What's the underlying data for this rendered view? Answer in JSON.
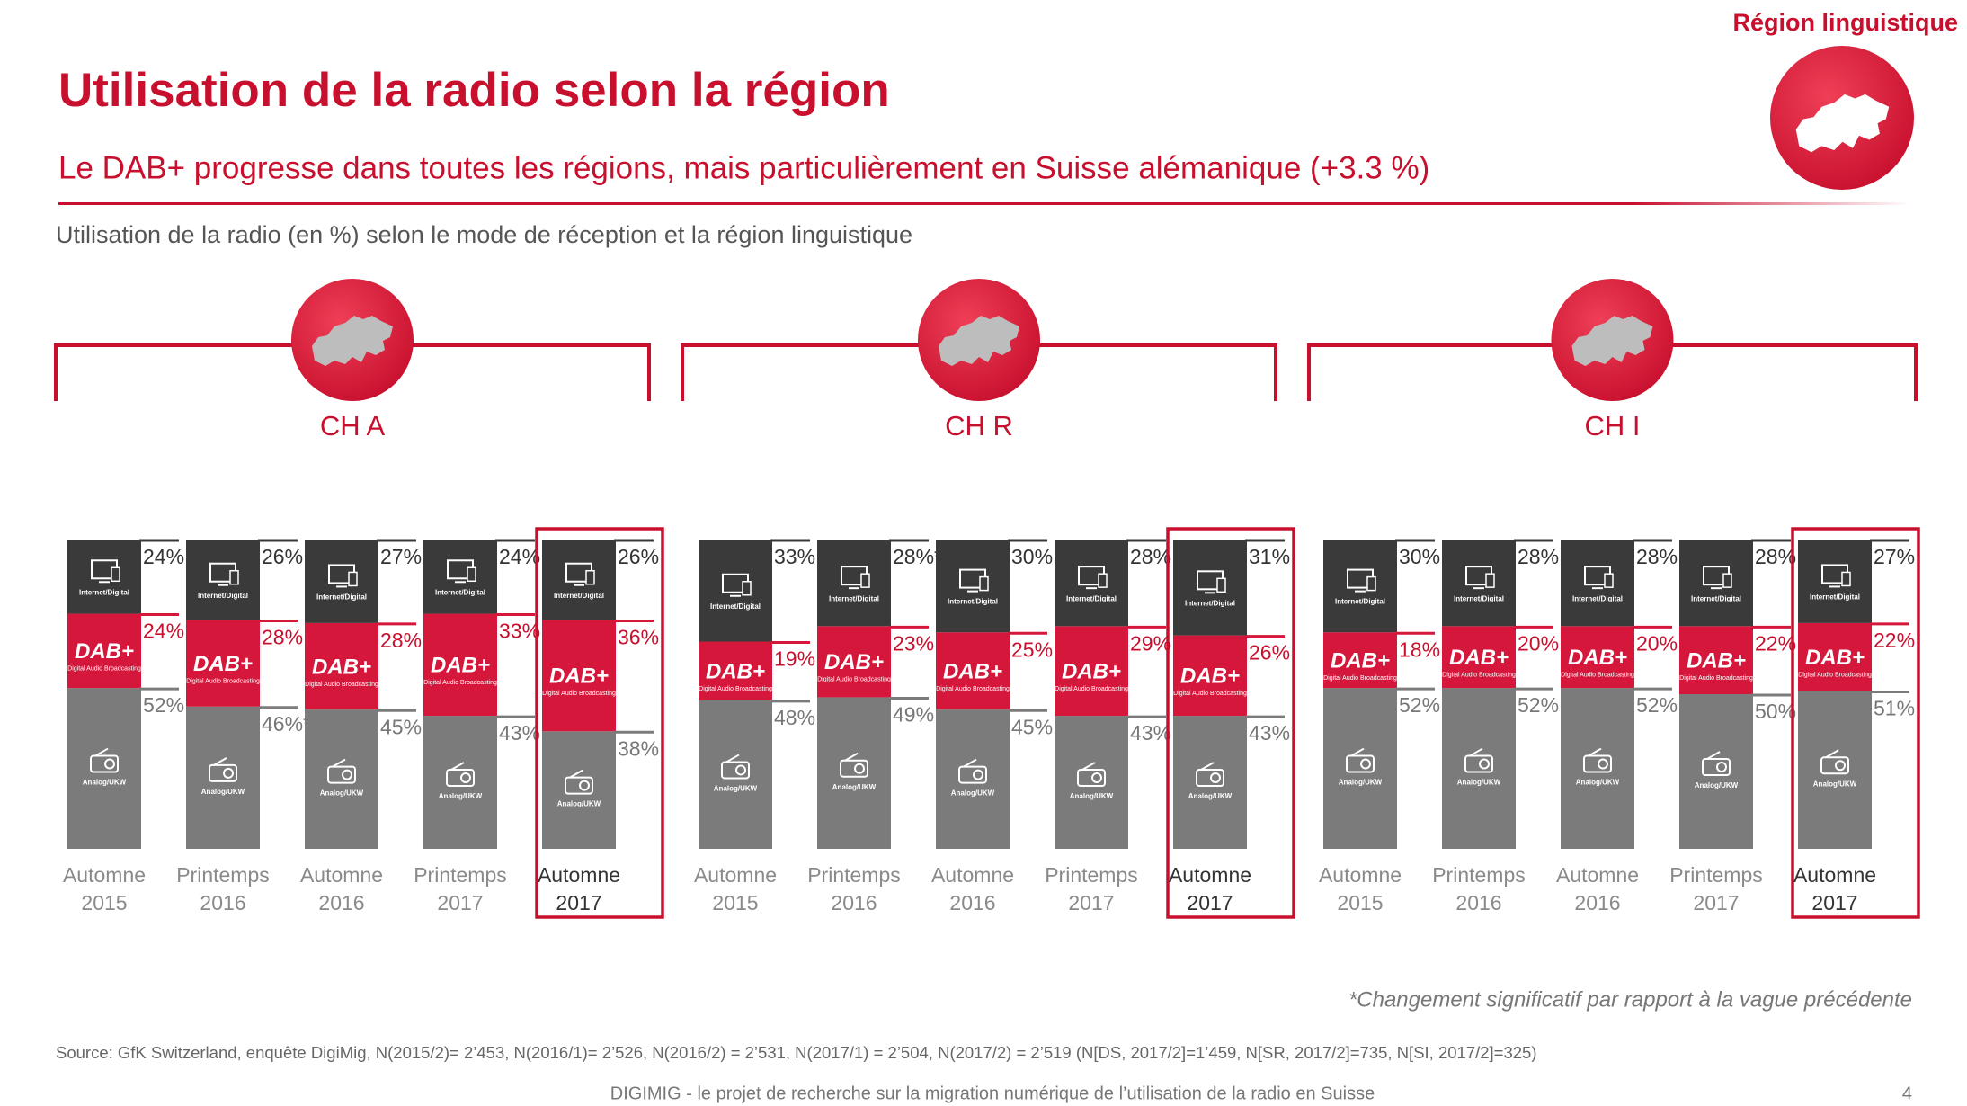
{
  "header": {
    "tag": "Région linguistique",
    "title": "Utilisation de la radio selon la région",
    "subtitle": "Le DAB+ progresse dans toutes les régions, mais particulièrement en Suisse alémanique (+3.3 %)",
    "description": "Utilisation de la radio (en %) selon le mode de réception et la région linguistique"
  },
  "chart_data": [
    {
      "type": "bar",
      "stacked": true,
      "title": "CH A",
      "categories": [
        "Automne 2015",
        "Printemps 2016",
        "Automne 2016",
        "Printemps 2017",
        "Automne 2017"
      ],
      "highlight_category": 4,
      "ylim": [
        0,
        100
      ],
      "series": [
        {
          "name": "Internet/Digital",
          "color": "#3a3a3a",
          "values": [
            24,
            26,
            27,
            24,
            26
          ],
          "value_labels": [
            "24%",
            "26%",
            "27%",
            "24%",
            "26%"
          ]
        },
        {
          "name": "DAB+",
          "description": "Digital Audio Broadcasting",
          "color": "#d5173b",
          "values": [
            24,
            28,
            28,
            33,
            36
          ],
          "value_labels": [
            "24%",
            "28%",
            "28%",
            "33%",
            "36%"
          ]
        },
        {
          "name": "Analog/UKW",
          "color": "#7b7b7b",
          "values": [
            52,
            46,
            45,
            43,
            38
          ],
          "value_labels": [
            "52%",
            "46%*",
            "45%",
            "43%",
            "38%"
          ]
        }
      ]
    },
    {
      "type": "bar",
      "stacked": true,
      "title": "CH R",
      "categories": [
        "Automne 2015",
        "Printemps 2016",
        "Automne 2016",
        "Printemps 2017",
        "Automne 2017"
      ],
      "highlight_category": 4,
      "ylim": [
        0,
        100
      ],
      "series": [
        {
          "name": "Internet/Digital",
          "color": "#3a3a3a",
          "values": [
            33,
            28,
            30,
            28,
            31
          ],
          "value_labels": [
            "33%",
            "28%*",
            "30%",
            "28%",
            "31%"
          ]
        },
        {
          "name": "DAB+",
          "description": "Digital Audio Broadcasting",
          "color": "#d5173b",
          "values": [
            19,
            23,
            25,
            29,
            26
          ],
          "value_labels": [
            "19%",
            "23%",
            "25%",
            "29%",
            "26%"
          ]
        },
        {
          "name": "Analog/UKW",
          "color": "#7b7b7b",
          "values": [
            48,
            49,
            45,
            43,
            43
          ],
          "value_labels": [
            "48%",
            "49%",
            "45%",
            "43%",
            "43%"
          ]
        }
      ]
    },
    {
      "type": "bar",
      "stacked": true,
      "title": "CH I",
      "categories": [
        "Automne 2015",
        "Printemps 2016",
        "Automne 2016",
        "Printemps 2017",
        "Automne 2017"
      ],
      "highlight_category": 4,
      "ylim": [
        0,
        100
      ],
      "series": [
        {
          "name": "Internet/Digital",
          "color": "#3a3a3a",
          "values": [
            30,
            28,
            28,
            28,
            27
          ],
          "value_labels": [
            "30%",
            "28%",
            "28%",
            "28%",
            "27%"
          ]
        },
        {
          "name": "DAB+",
          "description": "Digital Audio Broadcasting",
          "color": "#d5173b",
          "values": [
            18,
            20,
            20,
            22,
            22
          ],
          "value_labels": [
            "18%",
            "20%",
            "20%",
            "22%",
            "22%"
          ]
        },
        {
          "name": "Analog/UKW",
          "color": "#7b7b7b",
          "values": [
            52,
            52,
            52,
            50,
            51
          ],
          "value_labels": [
            "52%",
            "52%",
            "52%",
            "50%",
            "51%"
          ]
        }
      ]
    }
  ],
  "footnote": "*Changement significatif par rapport à la vague précédente",
  "source": "Source: GfK Switzerland, enquête DigiMig, N(2015/2)= 2’453, N(2016/1)= 2’526, N(2016/2) = 2’531, N(2017/1) = 2’504, N(2017/2) = 2’519 (N[DS, 2017/2]=1’459, N[SR, 2017/2]=735, N[SI, 2017/2]=325)",
  "footer": {
    "text": "DIGIMIG - le projet de recherche sur la migration numérique de l’utilisation de la radio en Suisse",
    "page": "4"
  }
}
